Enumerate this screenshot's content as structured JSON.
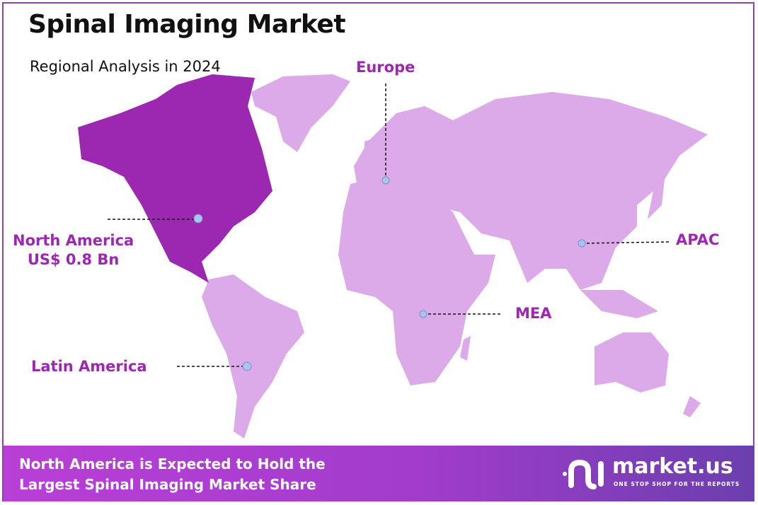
{
  "header": {
    "title": "Spinal Imaging Market",
    "subtitle": "Regional Analysis in 2024"
  },
  "regions": [
    {
      "name": "North America",
      "value": "US$ 0.8 Bn",
      "highlighted": true
    },
    {
      "name": "Europe"
    },
    {
      "name": "APAC"
    },
    {
      "name": "MEA"
    },
    {
      "name": "Latin America"
    }
  ],
  "colors": {
    "highlight": "#9c27b0",
    "land": "#dcaae9",
    "label": "#9c27b0",
    "marker": "#a9c4ee"
  },
  "footer": {
    "line1": "North America is Expected to Hold the",
    "line2": "Largest Spinal Imaging Market Share"
  },
  "logo": {
    "name": "market.us",
    "tagline": "ONE STOP SHOP FOR THE REPORTS"
  }
}
